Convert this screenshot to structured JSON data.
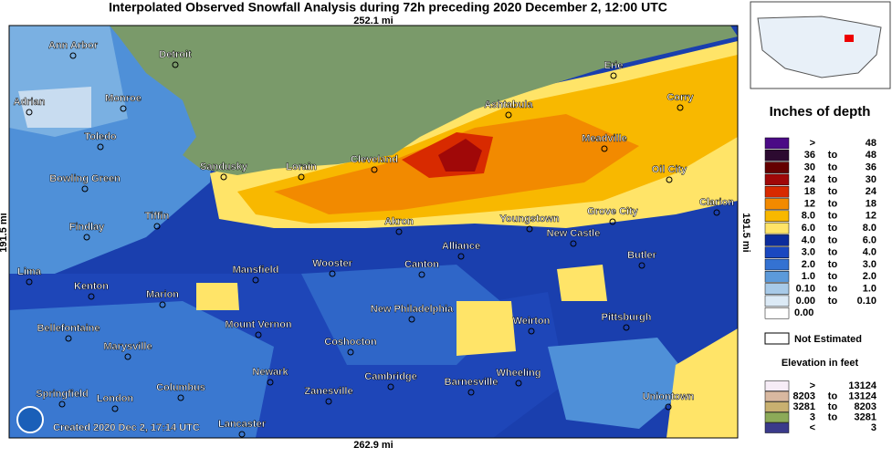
{
  "title": "Interpolated Observed Snowfall Analysis during 72h preceding 2020 December 2, 12:00 UTC",
  "scale": {
    "top": "252.1 mi",
    "bottom": "262.9 mi",
    "left": "191.5 mi",
    "right": "191.5 mi"
  },
  "cities": [
    "Ann Arbor",
    "Detroit",
    "Adrian",
    "Monroe",
    "Toledo",
    "Sandusky",
    "Lorain",
    "Cleveland",
    "Ashtabula",
    "Erie",
    "Corry",
    "Meadville",
    "Oil City",
    "Clarion",
    "Bowling Green",
    "Findlay",
    "Tiffin",
    "Akron",
    "Youngstown",
    "Grove City",
    "New Castle",
    "Alliance",
    "Butler",
    "Lima",
    "Kenton",
    "Mansfield",
    "Wooster",
    "Canton",
    "Marion",
    "New Philadelphia",
    "Weirton",
    "Pittsburgh",
    "Bellefontaine",
    "Mount Vernon",
    "Marysville",
    "Coshocton",
    "Newark",
    "Cambridge",
    "Barnesville",
    "Wheeling",
    "Springfield",
    "London",
    "Columbus",
    "Zanesville",
    "Uniontown",
    "Lancaster"
  ],
  "created": "Created 2020 Dec 2, 17:14 UTC",
  "legend": {
    "title": "Inches of depth",
    "rows": [
      {
        "low": ">",
        "high": "48",
        "color": "#4b0a86"
      },
      {
        "low": "36",
        "sep": "to",
        "high": "48",
        "color": "#2c0a30"
      },
      {
        "low": "30",
        "sep": "to",
        "high": "36",
        "color": "#640000"
      },
      {
        "low": "24",
        "sep": "to",
        "high": "30",
        "color": "#a00808"
      },
      {
        "low": "18",
        "sep": "to",
        "high": "24",
        "color": "#d82a00"
      },
      {
        "low": "12",
        "sep": "to",
        "high": "18",
        "color": "#f28a00"
      },
      {
        "low": "8.0",
        "sep": "to",
        "high": "12",
        "color": "#f8b800"
      },
      {
        "low": "6.0",
        "sep": "to",
        "high": "8.0",
        "color": "#ffe468"
      },
      {
        "low": "4.0",
        "sep": "to",
        "high": "6.0",
        "color": "#0c2c9c"
      },
      {
        "low": "3.0",
        "sep": "to",
        "high": "4.0",
        "color": "#1a48c0"
      },
      {
        "low": "2.0",
        "sep": "to",
        "high": "3.0",
        "color": "#3472d2"
      },
      {
        "low": "1.0",
        "sep": "to",
        "high": "2.0",
        "color": "#5c9ada"
      },
      {
        "low": "0.10",
        "sep": "to",
        "high": "1.0",
        "color": "#a8cae8"
      },
      {
        "low": "0.00",
        "sep": "to",
        "high": "0.10",
        "color": "#dceaf6"
      },
      {
        "low": "0.00",
        "color": "#ffffff"
      }
    ]
  },
  "not_estimated": "Not Estimated",
  "elevation": {
    "title": "Elevation in feet",
    "rows": [
      {
        "low": ">",
        "high": "13124",
        "color": "#f6ecf6"
      },
      {
        "low": "8203",
        "sep": "to",
        "high": "13124",
        "color": "#d8b8a0"
      },
      {
        "low": "3281",
        "sep": "to",
        "high": "8203",
        "color": "#c8b070"
      },
      {
        "low": "3",
        "sep": "to",
        "high": "3281",
        "color": "#8caa58"
      },
      {
        "low": "<",
        "high": "3",
        "color": "#3a3a8a"
      }
    ]
  }
}
